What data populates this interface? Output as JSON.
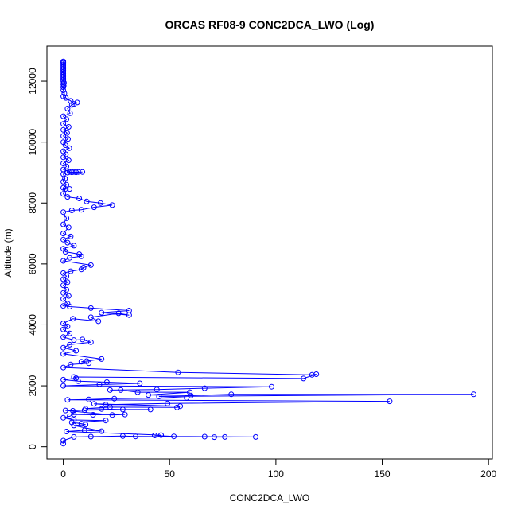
{
  "chart_data": {
    "type": "line",
    "title": "ORCAS RF08-9 CONC2DCA_LWO (Log)",
    "xlabel": "CONC2DCA_LWO",
    "ylabel": "Altitude (m)",
    "xlim": [
      -7.7,
      201.8
    ],
    "ylim": [
      -400,
      13150
    ],
    "xticks": [
      0,
      50,
      100,
      150,
      200
    ],
    "yticks": [
      0,
      2000,
      4000,
      6000,
      8000,
      10000,
      12000
    ],
    "series_color": "#0000ff",
    "series": [
      {
        "values": [
          [
            0,
            12650
          ],
          [
            0,
            12620
          ],
          [
            0,
            12600
          ],
          [
            0,
            12550
          ],
          [
            0,
            12500
          ],
          [
            0,
            12450
          ],
          [
            0,
            12400
          ],
          [
            0,
            12350
          ],
          [
            0,
            12300
          ],
          [
            0,
            12250
          ],
          [
            0,
            12200
          ],
          [
            0,
            12150
          ],
          [
            0,
            12100
          ],
          [
            0,
            12050
          ],
          [
            0,
            12000
          ],
          [
            0.3,
            11950
          ],
          [
            0,
            11900
          ],
          [
            0.2,
            11850
          ],
          [
            0,
            11800
          ],
          [
            0,
            11700
          ],
          [
            0.5,
            11600
          ],
          [
            0,
            11500
          ],
          [
            1.2,
            11450
          ],
          [
            3.5,
            11350
          ],
          [
            5,
            11250
          ],
          [
            6.5,
            11300
          ],
          [
            4,
            11220
          ],
          [
            2,
            11100
          ],
          [
            3.2,
            10950
          ],
          [
            0,
            10850
          ],
          [
            1.5,
            10750
          ],
          [
            0,
            10600
          ],
          [
            2.5,
            10500
          ],
          [
            0,
            10400
          ],
          [
            1.8,
            10300
          ],
          [
            0,
            10200
          ],
          [
            2.2,
            10100
          ],
          [
            0,
            10000
          ],
          [
            1,
            9900
          ],
          [
            2.8,
            9800
          ],
          [
            0,
            9700
          ],
          [
            1.2,
            9600
          ],
          [
            0,
            9500
          ],
          [
            2.5,
            9400
          ],
          [
            0,
            9300
          ],
          [
            1.5,
            9200
          ],
          [
            0,
            9100
          ],
          [
            3,
            9020
          ],
          [
            5,
            9020
          ],
          [
            7,
            9020
          ],
          [
            9,
            9020
          ],
          [
            6,
            9010
          ],
          [
            4,
            9010
          ],
          [
            2,
            9000
          ],
          [
            0,
            8950
          ],
          [
            0.8,
            8800
          ],
          [
            0,
            8700
          ],
          [
            1.5,
            8600
          ],
          [
            0,
            8500
          ],
          [
            3,
            8460
          ],
          [
            1,
            8460
          ],
          [
            0,
            8300
          ],
          [
            2,
            8200
          ],
          [
            7.5,
            8150
          ],
          [
            11,
            8050
          ],
          [
            17.5,
            8000
          ],
          [
            23,
            7930
          ],
          [
            14.5,
            7860
          ],
          [
            8.5,
            7780
          ],
          [
            4,
            7760
          ],
          [
            0,
            7700
          ],
          [
            1.5,
            7500
          ],
          [
            0,
            7300
          ],
          [
            2.5,
            7200
          ],
          [
            0,
            7000
          ],
          [
            3.5,
            6900
          ],
          [
            0,
            6800
          ],
          [
            2,
            6700
          ],
          [
            5,
            6600
          ],
          [
            0,
            6500
          ],
          [
            1,
            6400
          ],
          [
            7.5,
            6320
          ],
          [
            8.5,
            6250
          ],
          [
            3,
            6200
          ],
          [
            0,
            6100
          ],
          [
            13,
            5960
          ],
          [
            9.5,
            5880
          ],
          [
            8.5,
            5820
          ],
          [
            3.5,
            5760
          ],
          [
            0,
            5700
          ],
          [
            1.5,
            5600
          ],
          [
            0,
            5500
          ],
          [
            2,
            5400
          ],
          [
            0,
            5300
          ],
          [
            1.5,
            5150
          ],
          [
            0,
            5050
          ],
          [
            2.5,
            4950
          ],
          [
            0,
            4850
          ],
          [
            2,
            4700
          ],
          [
            0,
            4620
          ],
          [
            3,
            4600
          ],
          [
            13,
            4550
          ],
          [
            31,
            4470
          ],
          [
            18,
            4400
          ],
          [
            31,
            4320
          ],
          [
            26,
            4380
          ],
          [
            13,
            4250
          ],
          [
            16.5,
            4120
          ],
          [
            4.5,
            4200
          ],
          [
            0,
            4050
          ],
          [
            2,
            3950
          ],
          [
            0,
            3850
          ],
          [
            3,
            3720
          ],
          [
            0,
            3600
          ],
          [
            5,
            3500
          ],
          [
            9,
            3520
          ],
          [
            13,
            3430
          ],
          [
            3,
            3350
          ],
          [
            0,
            3250
          ],
          [
            6,
            3150
          ],
          [
            0,
            3050
          ],
          [
            18,
            2880
          ],
          [
            11,
            2810
          ],
          [
            8.5,
            2790
          ],
          [
            12,
            2740
          ],
          [
            3.5,
            2700
          ],
          [
            0,
            2600
          ],
          [
            54,
            2440
          ],
          [
            117,
            2360
          ],
          [
            119,
            2380
          ],
          [
            113,
            2240
          ],
          [
            5,
            2290
          ],
          [
            6,
            2250
          ],
          [
            0,
            2200
          ],
          [
            7,
            2150
          ],
          [
            20.5,
            2120
          ],
          [
            36,
            2080
          ],
          [
            17,
            2040
          ],
          [
            0,
            2000
          ],
          [
            98,
            1970
          ],
          [
            66.5,
            1920
          ],
          [
            44,
            1880
          ],
          [
            22,
            1860
          ],
          [
            27,
            1860
          ],
          [
            35,
            1790
          ],
          [
            59.5,
            1790
          ],
          [
            40,
            1700
          ],
          [
            60,
            1680
          ],
          [
            79,
            1720
          ],
          [
            193,
            1720
          ],
          [
            45,
            1650
          ],
          [
            58,
            1600
          ],
          [
            24,
            1580
          ],
          [
            12,
            1550
          ],
          [
            2,
            1540
          ],
          [
            153.5,
            1490
          ],
          [
            49,
            1420
          ],
          [
            20,
            1380
          ],
          [
            14.5,
            1410
          ],
          [
            55,
            1330
          ],
          [
            53.5,
            1290
          ],
          [
            22,
            1300
          ],
          [
            10.5,
            1250
          ],
          [
            18,
            1240
          ],
          [
            28,
            1220
          ],
          [
            41,
            1220
          ],
          [
            10,
            1200
          ],
          [
            4.5,
            1180
          ],
          [
            1,
            1190
          ],
          [
            23,
            1040
          ],
          [
            29,
            1060
          ],
          [
            14,
            1050
          ],
          [
            5,
            1060
          ],
          [
            3,
            1000
          ],
          [
            0,
            950
          ],
          [
            5,
            880
          ],
          [
            20,
            860
          ],
          [
            4,
            800
          ],
          [
            8.5,
            760
          ],
          [
            10.5,
            730
          ],
          [
            5,
            700
          ],
          [
            18,
            510
          ],
          [
            10,
            540
          ],
          [
            1.5,
            500
          ],
          [
            46,
            380
          ],
          [
            43,
            370
          ],
          [
            52,
            340
          ],
          [
            66.5,
            330
          ],
          [
            90.5,
            320
          ],
          [
            71,
            315
          ],
          [
            76,
            320
          ],
          [
            34,
            340
          ],
          [
            28,
            350
          ],
          [
            13,
            330
          ],
          [
            5,
            320
          ],
          [
            0,
            200
          ],
          [
            0,
            100
          ]
        ]
      }
    ]
  }
}
